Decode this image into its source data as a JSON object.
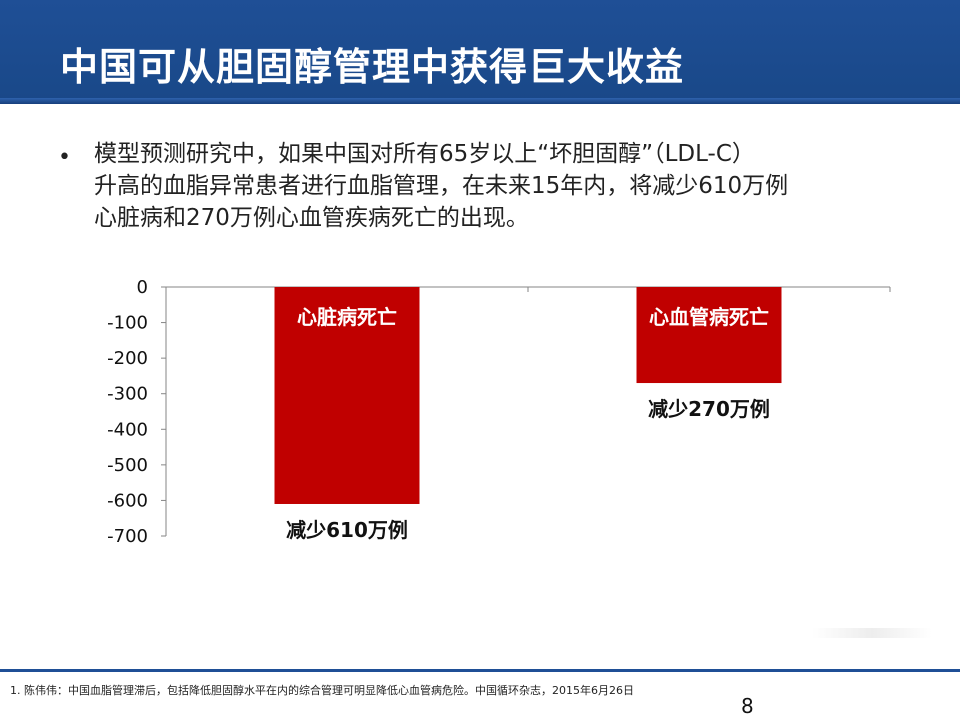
{
  "slide": {
    "title": "中国可从胆固醇管理中获得巨大收益",
    "bullet_symbol": "•",
    "bullet_lines": [
      "模型预测研究中，如果中国对所有65岁以上“坏胆固醇”（LDL-C）",
      "升高的血脂异常患者进行血脂管理，在未来15年内，将减少610万例",
      "心脏病和270万例心血管疾病死亡的出现。"
    ],
    "footnote": "1. 陈伟伟：中国血脂管理滞后，包括降低胆固醇水平在内的综合管理可明显降低心血管病危险。中国循环杂志，2015年6月26日",
    "page_number": "8"
  },
  "colors": {
    "header": "#1f4f96",
    "bar": "#c00000",
    "bar_label": "#ffffff"
  },
  "chart_data": {
    "type": "bar",
    "categories": [
      "心脏病死亡",
      "心血管病死亡"
    ],
    "values": [
      -610,
      -270
    ],
    "bar_labels": [
      "心脏病死亡",
      "心血管病死亡"
    ],
    "annotations": [
      "减少610万例",
      "减少270万例"
    ],
    "ylim": [
      -700,
      0
    ],
    "yticks": [
      0,
      -100,
      -200,
      -300,
      -400,
      -500,
      -600,
      -700
    ],
    "grid": false,
    "legend": "none"
  }
}
